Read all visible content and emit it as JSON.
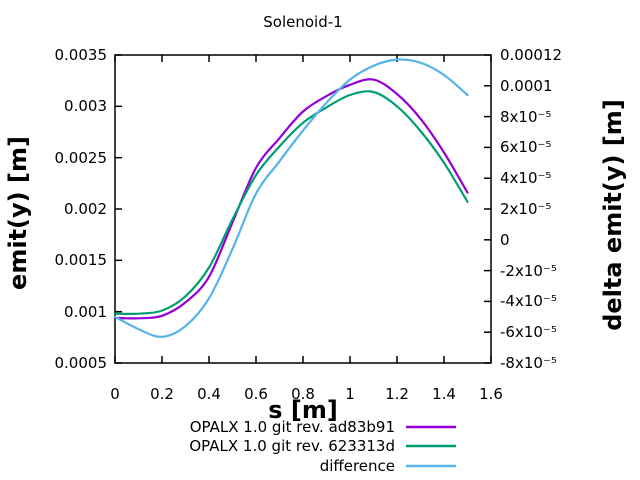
{
  "title": "Solenoid-1",
  "axes": {
    "x": {
      "label": "s [m]",
      "min": 0,
      "max": 1.6,
      "ticks": [
        {
          "v": 0,
          "label": "0"
        },
        {
          "v": 0.2,
          "label": "0.2"
        },
        {
          "v": 0.4,
          "label": "0.4"
        },
        {
          "v": 0.6,
          "label": "0.6"
        },
        {
          "v": 0.8,
          "label": "0.8"
        },
        {
          "v": 1,
          "label": "1"
        },
        {
          "v": 1.2,
          "label": "1.2"
        },
        {
          "v": 1.4,
          "label": "1.4"
        },
        {
          "v": 1.6,
          "label": "1.6"
        }
      ]
    },
    "y_left": {
      "label": "emit(y) [m]",
      "min": 0.0005,
      "max": 0.0035,
      "ticks": [
        {
          "v": 0.0035,
          "label": "0.0035"
        },
        {
          "v": 0.003,
          "label": "0.003"
        },
        {
          "v": 0.0025,
          "label": "0.0025"
        },
        {
          "v": 0.002,
          "label": "0.002"
        },
        {
          "v": 0.0015,
          "label": "0.0015"
        },
        {
          "v": 0.001,
          "label": "0.001"
        },
        {
          "v": 0.0005,
          "label": "0.0005"
        }
      ]
    },
    "y_right": {
      "label": "delta emit(y) [m]",
      "min": -8e-05,
      "max": 0.00012,
      "ticks": [
        {
          "v": 0.00012,
          "label": "0.00012"
        },
        {
          "v": 0.0001,
          "label": "0.0001"
        },
        {
          "v": 8e-05,
          "label": "8x10⁻⁵"
        },
        {
          "v": 6e-05,
          "label": "6x10⁻⁵"
        },
        {
          "v": 4e-05,
          "label": "4x10⁻⁵"
        },
        {
          "v": 2e-05,
          "label": "2x10⁻⁵"
        },
        {
          "v": 0,
          "label": "0"
        },
        {
          "v": -2e-05,
          "label": "-2x10⁻⁵"
        },
        {
          "v": -4e-05,
          "label": "-4x10⁻⁵"
        },
        {
          "v": -6e-05,
          "label": "-6x10⁻⁵"
        },
        {
          "v": -8e-05,
          "label": "-8x10⁻⁵"
        }
      ]
    }
  },
  "legend": [
    {
      "label": "OPALX 1.0 git rev. ad83b91",
      "color": "#9400d3"
    },
    {
      "label": "OPALX 1.0 git rev. 623313d",
      "color": "#009e73"
    },
    {
      "label": "difference",
      "color": "#56b4e9"
    }
  ],
  "colors": {
    "border": "#000000",
    "series_purple": "#9400d3",
    "series_green": "#009e73",
    "series_blue": "#56b4e9"
  },
  "chart_data": {
    "type": "line",
    "title": "Solenoid-1",
    "xlabel": "s [m]",
    "ylabel_left": "emit(y) [m]",
    "ylabel_right": "delta emit(y) [m]",
    "x_range": [
      0,
      1.6
    ],
    "y_left_range": [
      0.0005,
      0.0035
    ],
    "y_right_range": [
      -8e-05,
      0.00012
    ],
    "grid": false,
    "legend_position": "below",
    "x": [
      0,
      0.1,
      0.2,
      0.3,
      0.4,
      0.5,
      0.6,
      0.7,
      0.8,
      0.9,
      1.0,
      1.1,
      1.2,
      1.3,
      1.4,
      1.5
    ],
    "series": [
      {
        "name": "OPALX 1.0 git rev. ad83b91",
        "axis": "left",
        "color": "#9400d3",
        "values": [
          0.00094,
          0.000935,
          0.00096,
          0.00109,
          0.00134,
          0.00187,
          0.0024,
          0.00269,
          0.00295,
          0.0031,
          0.00321,
          0.00326,
          0.00312,
          0.00288,
          0.00255,
          0.00216
        ]
      },
      {
        "name": "OPALX 1.0 git rev. 623313d",
        "axis": "left",
        "color": "#009e73",
        "values": [
          0.00098,
          0.00098,
          0.00101,
          0.00115,
          0.00143,
          0.0019,
          0.00233,
          0.00261,
          0.00284,
          0.00299,
          0.00311,
          0.00314,
          0.003,
          0.00276,
          0.00245,
          0.00207
        ]
      },
      {
        "name": "difference",
        "axis": "right",
        "color": "#56b4e9",
        "values": [
          -5e-05,
          -5.8e-05,
          -6.3e-05,
          -5.6e-05,
          -3.8e-05,
          -6e-06,
          3e-05,
          5.1e-05,
          7.1e-05,
          8.9e-05,
          0.000104,
          0.000113,
          0.000117,
          0.000115,
          0.000107,
          9.4e-05
        ]
      }
    ]
  }
}
